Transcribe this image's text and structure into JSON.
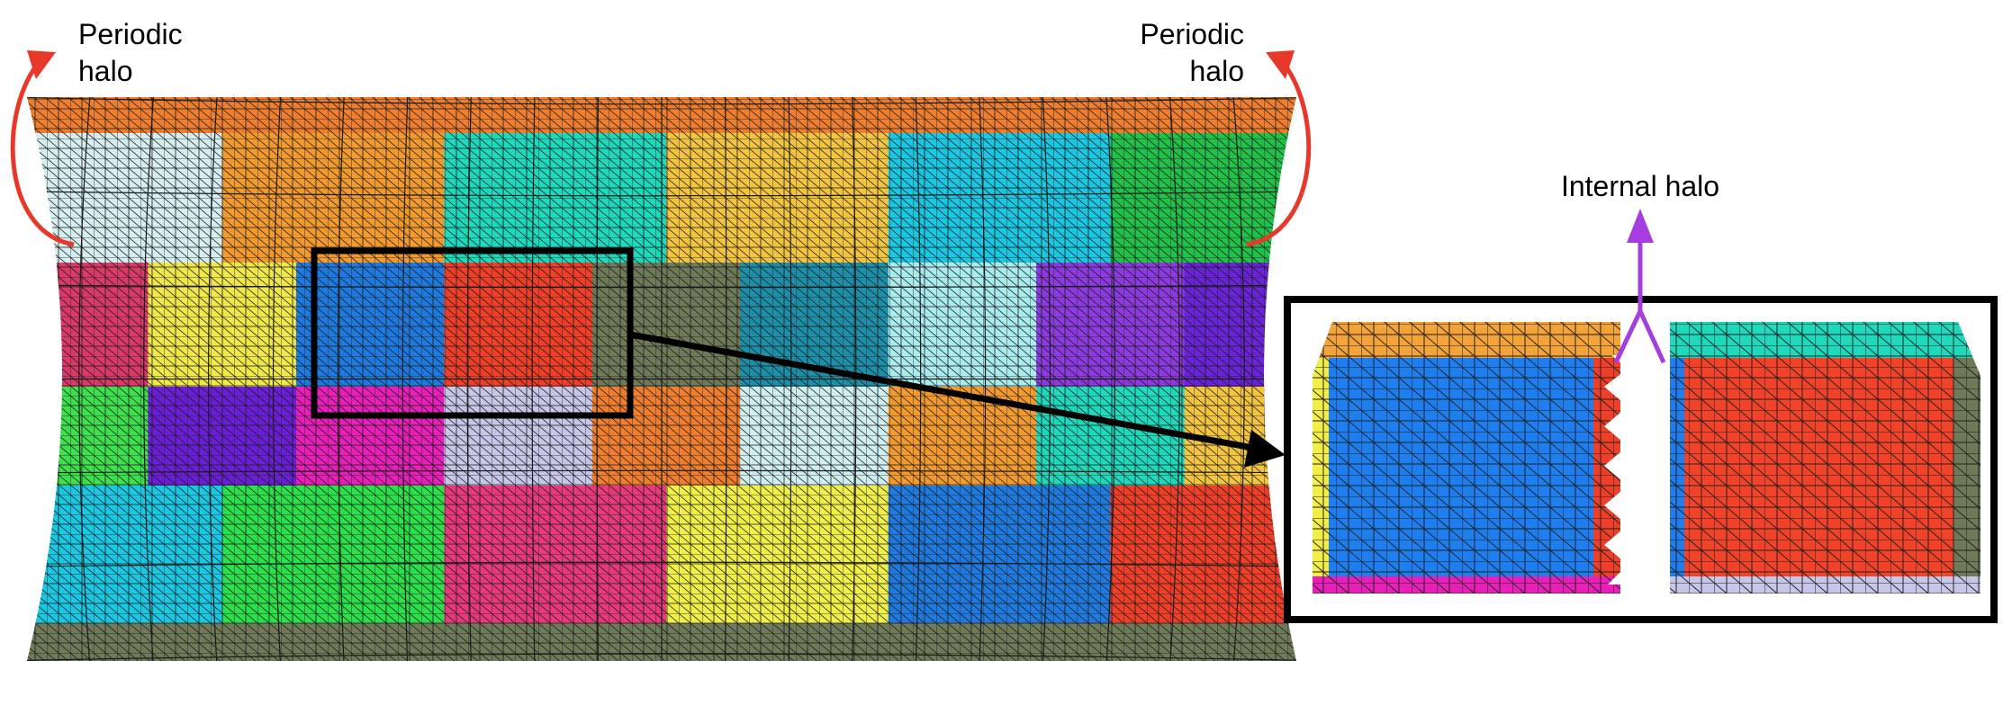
{
  "labels": {
    "periodic_left_line1": "Periodic",
    "periodic_left_line2": "halo",
    "periodic_right_line1": "Periodic",
    "periodic_right_line2": "halo",
    "internal_halo": "Internal halo"
  },
  "colors": {
    "periodic_arrow": "#e8382a",
    "internal_arrow": "#a63ddf",
    "mesh_line": "#1a1a1a",
    "top_halo": "#ef7e2e",
    "bottom_halo": "#6e7a58",
    "frame": "#000000"
  },
  "partition_grid": {
    "rows": [
      [
        "#d6eef0",
        "#f29a2e",
        "#1fd9bd",
        "#f2c440",
        "#1bc8e3",
        "#22c24a"
      ],
      [
        "#d93a6a",
        "#f0e84a",
        "#1f7ae0",
        "#ef3f28",
        "#6e7a58",
        "#1e8fa8",
        "#a8ecee",
        "#8d3be0",
        "#6a24d8"
      ],
      [
        "#3ee04e",
        "#6a1fd6",
        "#e81fb8",
        "#c6c6e8",
        "#ef7e2e",
        "#cfeef0",
        "#f29a2e",
        "#1fd9bd",
        "#f2c440"
      ],
      [
        "#1bc8e3",
        "#2be04a",
        "#e83a7a",
        "#f0ee48",
        "#1f7ae0",
        "#ef3f28"
      ]
    ]
  },
  "zoom_panel": {
    "left_block": {
      "main": "#1e7ef0",
      "top_halo": "#f4a33a",
      "left_halo": "#f2ee48",
      "bottom_halo": "#e81fb8",
      "right_halo": "#ef3f28"
    },
    "right_block": {
      "main": "#f2432a",
      "top_halo": "#1fd9bd",
      "left_halo": "#1e7ef0",
      "bottom_halo": "#c6c6e8",
      "right_halo": "#6e7a58"
    }
  }
}
